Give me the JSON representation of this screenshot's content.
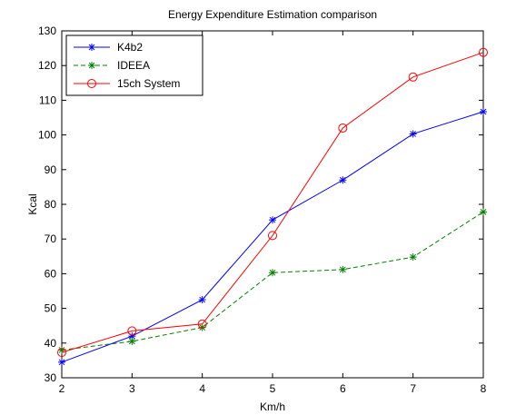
{
  "chart_data": {
    "type": "line",
    "title": "Energy Expenditure Estimation comparison",
    "xlabel": "Km/h",
    "ylabel": "Kcal",
    "x": [
      2,
      3,
      4,
      5,
      6,
      7,
      8
    ],
    "xlim": [
      2,
      8
    ],
    "ylim": [
      30,
      130
    ],
    "xticks": [
      2,
      3,
      4,
      5,
      6,
      7,
      8
    ],
    "yticks": [
      30,
      40,
      50,
      60,
      70,
      80,
      90,
      100,
      110,
      120,
      130
    ],
    "grid": false,
    "legend_position": "top-left",
    "series": [
      {
        "name": "K4b2",
        "values": [
          34.5,
          42,
          52.5,
          75.5,
          87,
          100.3,
          106.7
        ],
        "color": "#0000ff",
        "line_style": "solid",
        "marker": "asterisk"
      },
      {
        "name": "IDEEA",
        "values": [
          38,
          40.5,
          44.5,
          60.3,
          61.2,
          64.8,
          77.8
        ],
        "color": "#008000",
        "line_style": "dashed",
        "marker": "asterisk"
      },
      {
        "name": "15ch System",
        "values": [
          37.3,
          43.5,
          45.5,
          71,
          102,
          116.7,
          123.8
        ],
        "color": "#ff0000",
        "line_style": "solid",
        "marker": "circle"
      }
    ]
  }
}
